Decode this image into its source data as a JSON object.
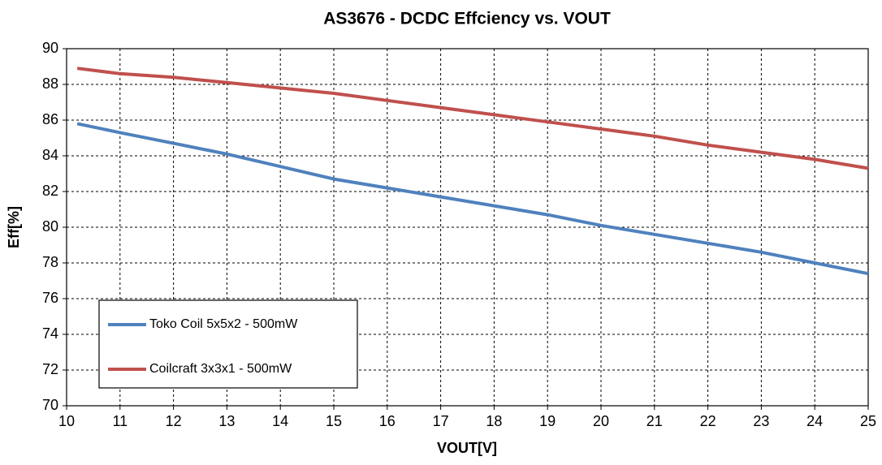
{
  "chart_data": {
    "type": "line",
    "title": "AS3676 - DCDC Effciency vs. VOUT",
    "x_label": "VOUT[V]",
    "y_label": "Eff[%]",
    "x": [
      10.2,
      11,
      12,
      13,
      14,
      15,
      16,
      17,
      18,
      19,
      20,
      21,
      22,
      23,
      24,
      25
    ],
    "series": [
      {
        "name": "Toko Coil 5x5x2 - 500mW",
        "color": "#4f81bd",
        "values": [
          85.8,
          85.3,
          84.7,
          84.1,
          83.4,
          82.7,
          82.2,
          81.7,
          81.2,
          80.7,
          80.1,
          79.6,
          79.1,
          78.6,
          78.0,
          77.4
        ]
      },
      {
        "name": "Coilcraft 3x3x1 - 500mW",
        "color": "#c0504d",
        "values": [
          88.9,
          88.6,
          88.4,
          88.1,
          87.8,
          87.5,
          87.1,
          86.7,
          86.3,
          85.9,
          85.5,
          85.1,
          84.6,
          84.2,
          83.8,
          83.3
        ]
      }
    ],
    "xlim": [
      10,
      25
    ],
    "xticks": [
      10,
      11,
      12,
      13,
      14,
      15,
      16,
      17,
      18,
      19,
      20,
      21,
      22,
      23,
      24,
      25
    ],
    "ylim": [
      70,
      90
    ],
    "yticks": [
      70,
      72,
      74,
      76,
      78,
      80,
      82,
      84,
      86,
      88,
      90
    ],
    "grid": true,
    "legend": "lower left"
  }
}
